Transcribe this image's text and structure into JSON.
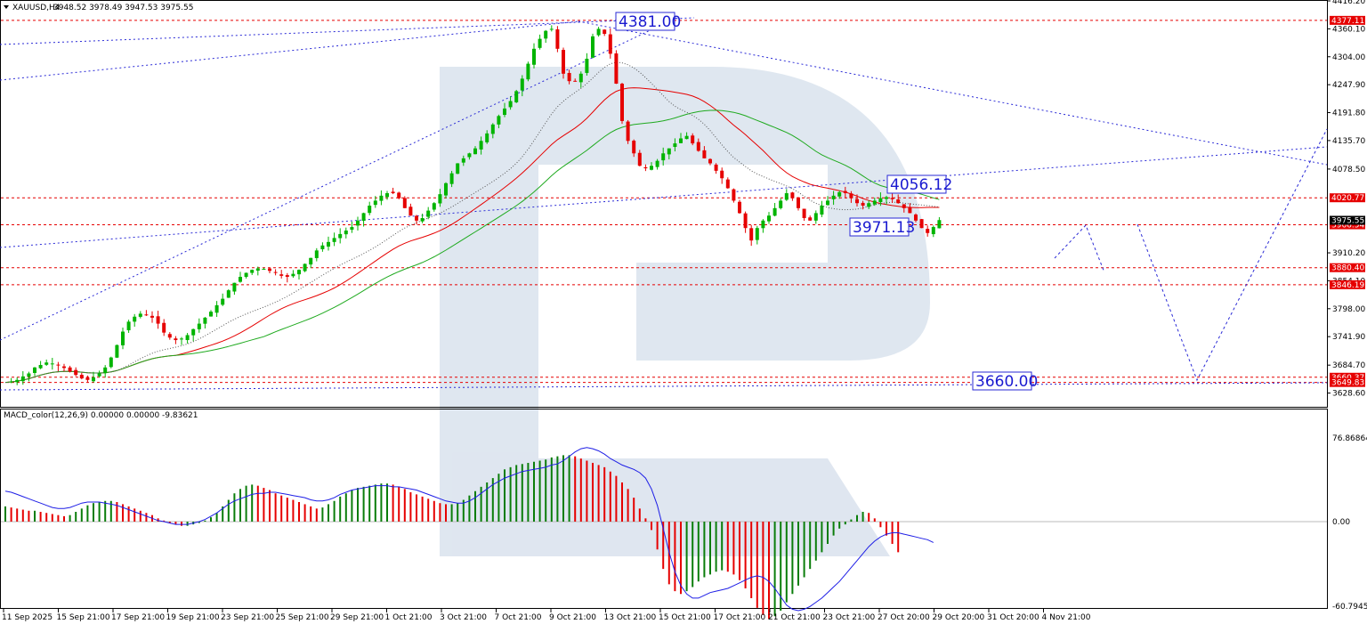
{
  "header": {
    "symbol": "XAUUSD,H4",
    "ohlc": "3948.52 3978.49 3947.53 3975.55",
    "indicator": "MACD_color(12,26,9) 0.00000 0.00000 -9.83621"
  },
  "colors": {
    "bull": "#00b400",
    "bear": "#e60000",
    "level_line": "#e60000",
    "trend_line": "#2a2ad6",
    "ma_fast": "#e60000",
    "ma_slow": "#1faa1f",
    "macd_signal": "#1e1ee6",
    "watermark": "#d6dfea",
    "price_label_bg": "#e60000",
    "current_label_bg": "#000000"
  },
  "chart_data": {
    "type": "candlestick",
    "price_axis": {
      "range": [
        3601.0,
        4416.2
      ],
      "ticks": [
        "4416.20",
        "4360.10",
        "4304.00",
        "4247.90",
        "4191.80",
        "4135.70",
        "4078.50",
        "3910.20",
        "3854.10",
        "3798.00",
        "3741.90",
        "3684.70",
        "3628.60"
      ]
    },
    "time_axis": {
      "ticks": [
        "11 Sep 2025",
        "15 Sep 21:00",
        "17 Sep 21:00",
        "19 Sep 21:00",
        "23 Sep 21:00",
        "25 Sep 21:00",
        "29 Sep 21:00",
        "1 Oct 21:00",
        "3 Oct 21:00",
        "7 Oct 21:00",
        "9 Oct 21:00",
        "13 Oct 21:00",
        "15 Oct 21:00",
        "17 Oct 21:00",
        "21 Oct 21:00",
        "23 Oct 21:00",
        "27 Oct 20:00",
        "29 Oct 20:00",
        "31 Oct 20:00",
        "4 Nov 21:00"
      ]
    },
    "levels": [
      {
        "value": 4377.11,
        "label": "4377.11"
      },
      {
        "value": 4020.77,
        "label": "4020.77"
      },
      {
        "value": 3966.54,
        "label": "3966.54"
      },
      {
        "value": 3880.4,
        "label": "3880.40"
      },
      {
        "value": 3846.19,
        "label": "3846.19"
      },
      {
        "value": 3660.37,
        "label": "3660.37"
      },
      {
        "value": 3649.83,
        "label": "3649.83"
      }
    ],
    "current_price": "3975.55",
    "annotations": [
      {
        "text": "4381.00",
        "price": 4381.0
      },
      {
        "text": "4056.12",
        "price": 4056.12
      },
      {
        "text": "3971.13",
        "price": 3971.13
      },
      {
        "text": "3660.00",
        "price": 3660.0
      }
    ],
    "close_path": [
      3650,
      3652,
      3655,
      3662,
      3668,
      3680,
      3685,
      3690,
      3688,
      3684,
      3679,
      3672,
      3665,
      3658,
      3655,
      3660,
      3668,
      3680,
      3700,
      3725,
      3752,
      3772,
      3782,
      3788,
      3785,
      3780,
      3768,
      3750,
      3740,
      3735,
      3738,
      3745,
      3757,
      3768,
      3780,
      3792,
      3805,
      3818,
      3835,
      3850,
      3862,
      3870,
      3876,
      3879,
      3878,
      3874,
      3870,
      3864,
      3862,
      3868,
      3876,
      3888,
      3900,
      3915,
      3925,
      3932,
      3940,
      3948,
      3955,
      3962,
      3975,
      3990,
      4005,
      4015,
      4025,
      4030,
      4030,
      4020,
      4000,
      3985,
      3975,
      3980,
      3995,
      4010,
      4028,
      4050,
      4070,
      4090,
      4100,
      4110,
      4120,
      4135,
      4150,
      4168,
      4185,
      4200,
      4215,
      4235,
      4260,
      4290,
      4320,
      4340,
      4356,
      4360,
      4320,
      4270,
      4255,
      4255,
      4270,
      4300,
      4345,
      4360,
      4350,
      4310,
      4250,
      4175,
      4135,
      4110,
      4085,
      4080,
      4085,
      4095,
      4110,
      4120,
      4130,
      4140,
      4145,
      4130,
      4115,
      4100,
      4090,
      4075,
      4060,
      4040,
      4015,
      3990,
      3960,
      3935,
      3960,
      3975,
      3985,
      4000,
      4015,
      4030,
      4020,
      4000,
      3980,
      3975,
      3990,
      4005,
      4015,
      4025,
      4032,
      4030,
      4020,
      4010,
      4005,
      4010,
      4015,
      4020,
      4022,
      4018,
      4010,
      4000,
      3990,
      3975,
      3960,
      3950,
      3962,
      3976
    ],
    "macd": {
      "zero": 0.0,
      "axis_ticks": [
        "76.86864",
        "0.00",
        "-60.79459"
      ],
      "histogram": [
        14,
        13,
        12,
        11,
        10,
        10,
        9,
        8,
        7,
        6,
        5,
        6,
        9,
        12,
        15,
        17,
        18,
        19,
        19,
        18,
        16,
        14,
        12,
        10,
        8,
        6,
        3,
        1,
        -1,
        -2,
        -3,
        -3,
        -2,
        -1,
        1,
        4,
        8,
        14,
        20,
        26,
        30,
        33,
        34,
        33,
        31,
        29,
        26,
        24,
        22,
        20,
        18,
        16,
        14,
        12,
        13,
        16,
        19,
        23,
        26,
        29,
        31,
        32,
        33,
        34,
        35,
        35,
        34,
        32,
        30,
        27,
        25,
        23,
        21,
        19,
        17,
        16,
        16,
        17,
        20,
        24,
        28,
        32,
        36,
        40,
        44,
        48,
        50,
        52,
        53,
        54,
        55,
        56,
        57,
        59,
        60,
        61,
        61,
        60,
        58,
        56,
        54,
        52,
        50,
        46,
        42,
        36,
        30,
        22,
        12,
        3,
        -6,
        -20,
        -34,
        -45,
        -50,
        -52,
        -50,
        -47,
        -43,
        -40,
        -38,
        -36,
        -35,
        -36,
        -38,
        -42,
        -48,
        -55,
        -62,
        -67,
        -70,
        -68,
        -64,
        -58,
        -52,
        -46,
        -40,
        -34,
        -28,
        -22,
        -16,
        -10,
        -5,
        -2,
        2,
        6,
        9,
        8,
        3,
        -4,
        -10,
        -16,
        -22
      ],
      "signal": [
        28,
        27,
        25,
        23,
        21,
        19,
        17,
        15,
        13,
        12,
        12,
        13,
        15,
        17,
        18,
        18,
        18,
        17,
        16,
        15,
        13,
        11,
        9,
        7,
        5,
        3,
        1,
        0,
        -1,
        -2,
        -2,
        -2,
        -1,
        0,
        2,
        5,
        8,
        12,
        16,
        19,
        21,
        23,
        25,
        26,
        26,
        27,
        27,
        26,
        25,
        24,
        23,
        22,
        20,
        19,
        19,
        20,
        22,
        25,
        27,
        29,
        30,
        31,
        32,
        33,
        33,
        33,
        32,
        32,
        31,
        30,
        29,
        27,
        25,
        23,
        21,
        19,
        18,
        17,
        17,
        19,
        22,
        26,
        30,
        34,
        37,
        40,
        42,
        44,
        46,
        47,
        48,
        49,
        50,
        52,
        53,
        56,
        60,
        64,
        67,
        68,
        67,
        65,
        62,
        58,
        55,
        52,
        50,
        48,
        45,
        40,
        30,
        15,
        -5,
        -22,
        -36,
        -46,
        -52,
        -55,
        -55,
        -53,
        -51,
        -50,
        -49,
        -48,
        -46,
        -44,
        -42,
        -40,
        -39,
        -40,
        -43,
        -48,
        -54,
        -60,
        -63,
        -64,
        -63,
        -61,
        -58,
        -55,
        -51,
        -47,
        -43,
        -38,
        -33,
        -28,
        -23,
        -18,
        -14,
        -11,
        -9,
        -8,
        -8,
        -9,
        -10,
        -11,
        -12,
        -13,
        -15
      ]
    }
  }
}
